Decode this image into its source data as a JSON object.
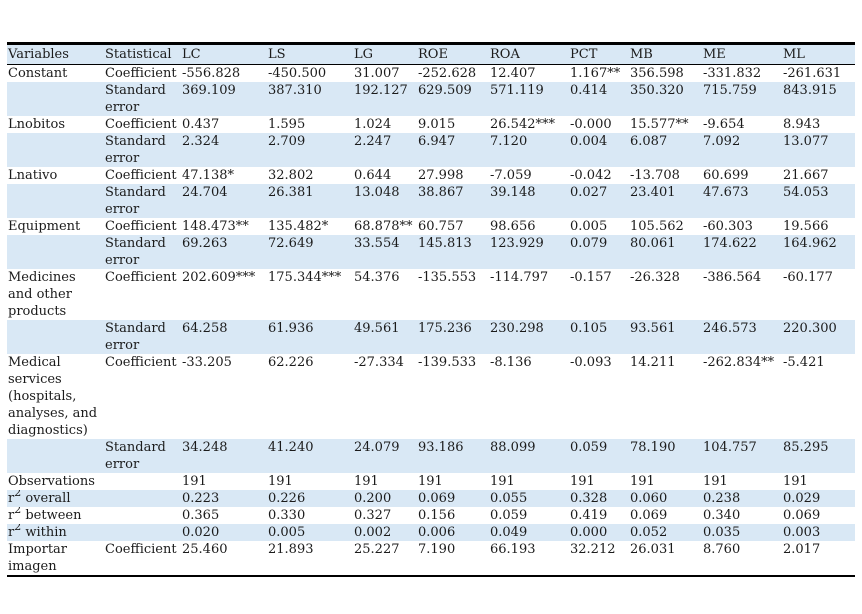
{
  "colors": {
    "row_alt_bg": "#d9e8f5",
    "rule": "#000000",
    "text": "#1b1b1b"
  },
  "table": {
    "columns": [
      "Variables",
      "Statistical",
      "LC",
      "LS",
      "LG",
      "ROE",
      "ROA",
      "PCT",
      "MB",
      "ME",
      "ML"
    ],
    "rows": [
      {
        "variable": "Constant",
        "statistical": "Coefficient",
        "values": [
          "-556.828",
          "-450.500",
          "31.007",
          "-252.628",
          "12.407",
          "1.167**",
          "356.598",
          "-331.832",
          "-261.631"
        ]
      },
      {
        "variable": "",
        "statistical": "Standard error",
        "values": [
          "369.109",
          "387.310",
          "192.127",
          "629.509",
          "571.119",
          "0.414",
          "350.320",
          "715.759",
          "843.915"
        ]
      },
      {
        "variable": "Lnobitos",
        "statistical": "Coefficient",
        "values": [
          "0.437",
          "1.595",
          "1.024",
          "9.015",
          "26.542***",
          "-0.000",
          "15.577**",
          "-9.654",
          "8.943"
        ]
      },
      {
        "variable": "",
        "statistical": "Standard error",
        "values": [
          "2.324",
          "2.709",
          "2.247",
          "6.947",
          "7.120",
          "0.004",
          "6.087",
          "7.092",
          "13.077"
        ]
      },
      {
        "variable": "Lnativo",
        "statistical": "Coefficient",
        "values": [
          "47.138*",
          "32.802",
          "0.644",
          "27.998",
          "-7.059",
          "-0.042",
          "-13.708",
          "60.699",
          "21.667"
        ]
      },
      {
        "variable": "",
        "statistical": "Standard error",
        "values": [
          "24.704",
          "26.381",
          "13.048",
          "38.867",
          "39.148",
          "0.027",
          "23.401",
          "47.673",
          "54.053"
        ]
      },
      {
        "variable": "Equipment",
        "statistical": "Coefficient",
        "values": [
          "148.473**",
          "135.482*",
          "68.878**",
          "60.757",
          "98.656",
          "0.005",
          "105.562",
          "-60.303",
          "19.566"
        ]
      },
      {
        "variable": "",
        "statistical": "Standard error",
        "values": [
          "69.263",
          "72.649",
          "33.554",
          "145.813",
          "123.929",
          "0.079",
          "80.061",
          "174.622",
          "164.962"
        ]
      },
      {
        "variable": "Medicines and other products",
        "statistical": "Coefficient",
        "values": [
          "202.609***",
          "175.344***",
          "54.376",
          "-135.553",
          "-114.797",
          "-0.157",
          "-26.328",
          "-386.564",
          "-60.177"
        ]
      },
      {
        "variable": "",
        "statistical": "Standard error",
        "values": [
          "64.258",
          "61.936",
          "49.561",
          "175.236",
          "230.298",
          "0.105",
          "93.561",
          "246.573",
          "220.300"
        ]
      },
      {
        "variable": "Medical services (hospitals, analyses, and diagnostics)",
        "statistical": "Coefficient",
        "values": [
          "-33.205",
          "62.226",
          "-27.334",
          "-139.533",
          "-8.136",
          "-0.093",
          "14.211",
          "-262.834**",
          "-5.421"
        ]
      },
      {
        "variable": "",
        "statistical": "Standard error",
        "values": [
          "34.248",
          "41.240",
          "24.079",
          "93.186",
          "88.099",
          "0.059",
          "78.190",
          "104.757",
          "85.295"
        ]
      },
      {
        "variable": "Observations",
        "statistical": "",
        "values": [
          "191",
          "191",
          "191",
          "191",
          "191",
          "191",
          "191",
          "191",
          "191"
        ]
      },
      {
        "variable": "r^2 overall",
        "statistical": "",
        "values": [
          "0.223",
          "0.226",
          "0.200",
          "0.069",
          "0.055",
          "0.328",
          "0.060",
          "0.238",
          "0.029"
        ]
      },
      {
        "variable": "r^2 between",
        "statistical": "",
        "values": [
          "0.365",
          "0.330",
          "0.327",
          "0.156",
          "0.059",
          "0.419",
          "0.069",
          "0.340",
          "0.069"
        ]
      },
      {
        "variable": "r^2 within",
        "statistical": "",
        "values": [
          "0.020",
          "0.005",
          "0.002",
          "0.006",
          "0.049",
          "0.000",
          "0.052",
          "0.035",
          "0.003"
        ]
      },
      {
        "variable": "Importar imagen",
        "statistical": "Coefficient",
        "values": [
          "25.460",
          "21.893",
          "25.227",
          "7.190",
          "66.193",
          "32.212",
          "26.031",
          "8.760",
          "2.017"
        ]
      }
    ]
  }
}
